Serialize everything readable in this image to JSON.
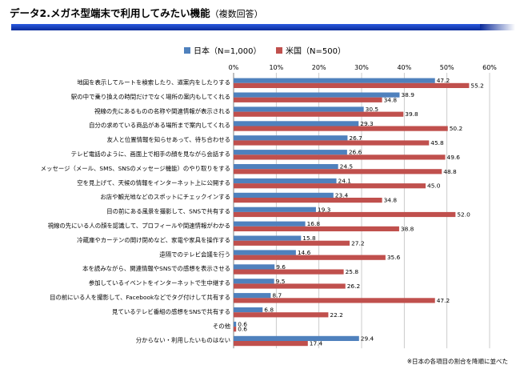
{
  "title": "データ2.メガネ型端末で利用してみたい機能",
  "subtitle": "（複数回答）",
  "footnote": "※日本の各項目の割合を降順に並べた",
  "colors": {
    "japan": "#4f81bd",
    "us": "#c0504d",
    "title_bar": "#1a46c8"
  },
  "chart_data": {
    "type": "bar",
    "orientation": "horizontal",
    "legend_position": "top",
    "xlim": [
      0,
      60
    ],
    "ticks": [
      0,
      10,
      20,
      30,
      40,
      50,
      60
    ],
    "tick_labels": [
      "0%",
      "10%",
      "20%",
      "30%",
      "40%",
      "50%",
      "60%"
    ],
    "grid": true,
    "categories": [
      "地図を表示してルートを検索したり、道案内をしたりする",
      "駅の中で乗り換えの時間だけでなく場所の案内もしてくれる",
      "視線の先にあるものの名称や関連情報が表示される",
      "自分の求めている商品がある場所まで案内してくれる",
      "友人と位置情報を知らせあって、待ち合わせる",
      "テレビ電話のように、画面上で相手の顔を見ながら会話する",
      "メッセージ（メール、SMS、SNSのメッセージ機能）のやり取りをする",
      "空を見上げて、天候の情報をインターネット上に公開する",
      "お店や観光地などのスポットにチェックインする",
      "目の前にある風景を撮影して、SNSで共有する",
      "視線の先にいる人の顔を認識して、プロフィールや関連情報がわかる",
      "冷蔵庫やカーテンの開け閉めなど、家電や家具を操作する",
      "遠隔でのテレビ会議を行う",
      "本を読みながら、関連情報やSNSでの感想を表示させる",
      "参加しているイベントをインターネットで生中継する",
      "目の前にいる人を撮影して、Facebookなどでタグ付けして共有する",
      "見ているテレビ番組の感想をSNSで共有する",
      "その他",
      "分からない・利用したいものはない"
    ],
    "series": [
      {
        "name": "日本（N=1,000）",
        "values": [
          47.2,
          38.9,
          30.5,
          29.3,
          26.7,
          26.6,
          24.5,
          24.1,
          23.4,
          19.3,
          16.8,
          15.8,
          14.6,
          9.6,
          9.5,
          8.7,
          6.8,
          0.6,
          29.4
        ],
        "value_labels": [
          "47.2",
          "38.9",
          "30.5",
          "29.3",
          "26.7",
          "26.6",
          "24.5",
          "24.1",
          "23.4",
          "19.3",
          "16.8",
          "15.8",
          "14.6",
          "9.6",
          "9.5",
          "8.7",
          "6.8",
          "0.6",
          "29.4"
        ]
      },
      {
        "name": "米国（N=500）",
        "values": [
          55.2,
          34.8,
          39.8,
          50.2,
          45.8,
          49.6,
          48.8,
          45.0,
          34.8,
          52.0,
          38.8,
          27.2,
          35.6,
          25.8,
          26.2,
          47.2,
          22.2,
          0.6,
          17.4
        ],
        "value_labels": [
          "55.2",
          "34.8",
          "39.8",
          "50.2",
          "45.8",
          "49.6",
          "48.8",
          "45.0",
          "34.8",
          "52.0",
          "38.8",
          "27.2",
          "35.6",
          "25.8",
          "26.2",
          "47.2",
          "22.2",
          "0.6",
          "17.4"
        ]
      }
    ]
  }
}
